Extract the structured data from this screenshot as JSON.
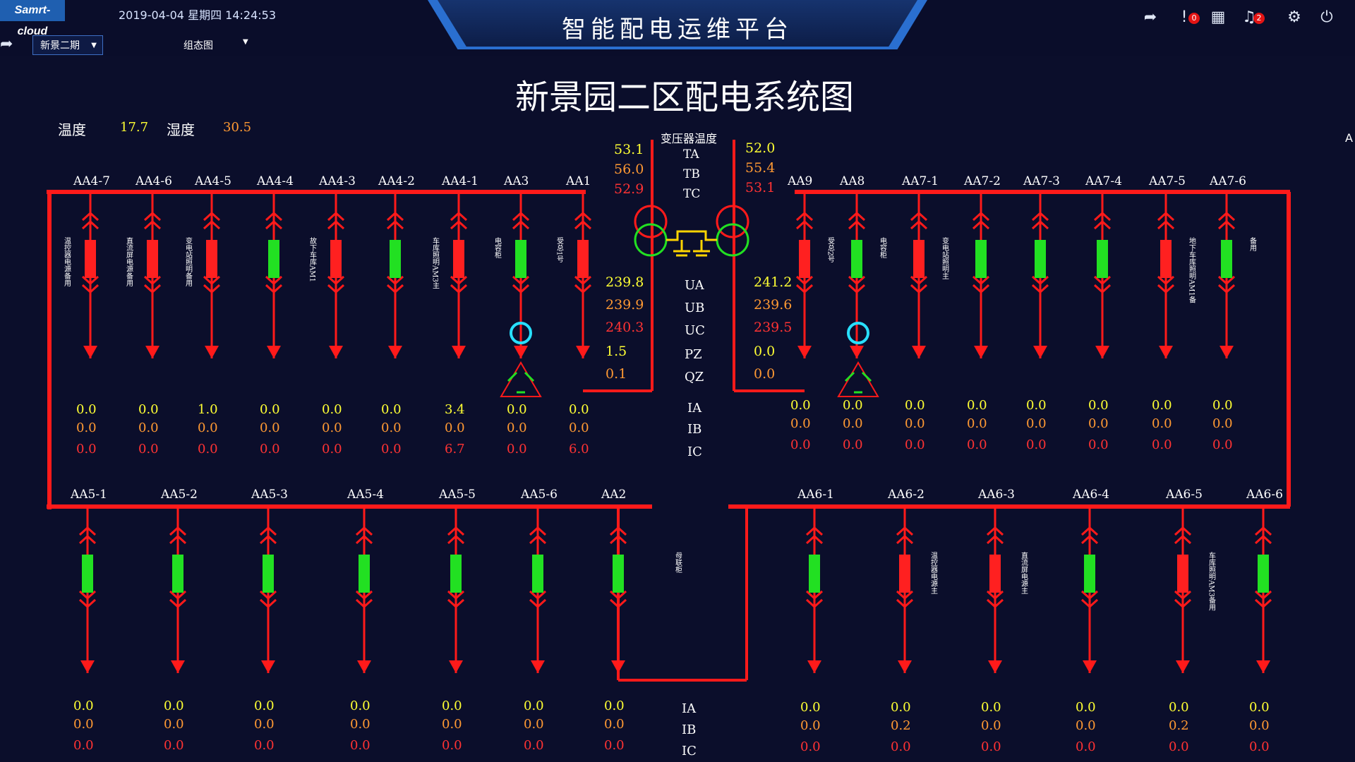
{
  "header": {
    "logo": "Samrt-cloud",
    "datetime": "2019-04-04 星期四 14:24:53",
    "title": "智能配电运维平台",
    "alarm_count": "0",
    "notice_count": "2",
    "site": "新景二期",
    "view": "组态图"
  },
  "diagram_title": "新景园二区配电系统图",
  "env": {
    "temp_label": "温度",
    "temp": "17.7",
    "humid_label": "湿度",
    "humid": "30.5"
  },
  "edge_label": "A",
  "transformer": {
    "title": "变压器温度",
    "labels": [
      "TA",
      "TB",
      "TC"
    ],
    "left": [
      "53.1",
      "56.0",
      "52.9"
    ],
    "right": [
      "52.0",
      "55.4",
      "53.1"
    ]
  },
  "voltage": {
    "labels": [
      "UA",
      "UB",
      "UC",
      "PZ",
      "QZ"
    ],
    "left": [
      "239.8",
      "239.9",
      "240.3",
      "1.5",
      "0.1"
    ],
    "right": [
      "241.2",
      "239.6",
      "239.5",
      "0.0",
      "0.0"
    ]
  },
  "current_labels": [
    "IA",
    "IB",
    "IC"
  ],
  "colors": {
    "bus": "#ff1a1a",
    "closed": "#ff2020",
    "open": "#22e022",
    "cap": "#28e0ff",
    "ia": "#ffff33",
    "ib": "#ff9933",
    "ic": "#ff3333"
  },
  "top_left": [
    {
      "name": "AA4-7",
      "state": "red",
      "desc": "温控器电源备用",
      "ia": "0.0",
      "ib": "0.0",
      "ic": "0.0"
    },
    {
      "name": "AA4-6",
      "state": "red",
      "desc": "直流屏电源备用",
      "ia": "0.0",
      "ib": "0.0",
      "ic": "0.0"
    },
    {
      "name": "AA4-5",
      "state": "red",
      "desc": "变电站照明备用",
      "ia": "1.0",
      "ib": "0.0",
      "ic": "0.0"
    },
    {
      "name": "AA4-4",
      "state": "green",
      "desc": "",
      "ia": "0.0",
      "ib": "0.0",
      "ic": "0.0"
    },
    {
      "name": "AA4-3",
      "state": "red",
      "desc": "故下车库AM1",
      "ia": "0.0",
      "ib": "0.0",
      "ic": "0.0"
    },
    {
      "name": "AA4-2",
      "state": "green",
      "desc": "",
      "ia": "0.0",
      "ib": "0.0",
      "ic": "0.0"
    },
    {
      "name": "AA4-1",
      "state": "red",
      "desc": "车库照明AM3主",
      "ia": "3.4",
      "ib": "0.0",
      "ic": "6.7"
    },
    {
      "name": "AA3",
      "state": "green",
      "desc": "电容柜",
      "ia": "0.0",
      "ib": "0.0",
      "ic": "0.0"
    },
    {
      "name": "AA1",
      "state": "red",
      "desc": "受总1号",
      "ia": "0.0",
      "ib": "0.0",
      "ic": "6.0"
    }
  ],
  "top_right": [
    {
      "name": "AA9",
      "state": "red",
      "desc": "受总2号",
      "ia": "0.0",
      "ib": "0.0",
      "ic": "0.0"
    },
    {
      "name": "AA8",
      "state": "green",
      "desc": "电容柜",
      "ia": "0.0",
      "ib": "0.0",
      "ic": "0.0"
    },
    {
      "name": "AA7-1",
      "state": "red",
      "desc": "变电站照明主",
      "ia": "0.0",
      "ib": "0.0",
      "ic": "0.0"
    },
    {
      "name": "AA7-2",
      "state": "green",
      "desc": "",
      "ia": "0.0",
      "ib": "0.0",
      "ic": "0.0"
    },
    {
      "name": "AA7-3",
      "state": "green",
      "desc": "",
      "ia": "0.0",
      "ib": "0.0",
      "ic": "0.0"
    },
    {
      "name": "AA7-4",
      "state": "green",
      "desc": "",
      "ia": "0.0",
      "ib": "0.0",
      "ic": "0.0"
    },
    {
      "name": "AA7-5",
      "state": "red",
      "desc": "地下车库照明AM1备",
      "ia": "0.0",
      "ib": "0.0",
      "ic": "0.0"
    },
    {
      "name": "AA7-6",
      "state": "green",
      "desc": "备用",
      "ia": "0.0",
      "ib": "0.0",
      "ic": "0.0"
    }
  ],
  "bottom_left": [
    {
      "name": "AA5-1",
      "state": "green",
      "desc": "",
      "ia": "0.0",
      "ib": "0.0",
      "ic": "0.0"
    },
    {
      "name": "AA5-2",
      "state": "green",
      "desc": "",
      "ia": "0.0",
      "ib": "0.0",
      "ic": "0.0"
    },
    {
      "name": "AA5-3",
      "state": "green",
      "desc": "",
      "ia": "0.0",
      "ib": "0.0",
      "ic": "0.0"
    },
    {
      "name": "AA5-4",
      "state": "green",
      "desc": "",
      "ia": "0.0",
      "ib": "0.0",
      "ic": "0.0"
    },
    {
      "name": "AA5-5",
      "state": "green",
      "desc": "",
      "ia": "0.0",
      "ib": "0.0",
      "ic": "0.0"
    },
    {
      "name": "AA5-6",
      "state": "green",
      "desc": "",
      "ia": "0.0",
      "ib": "0.0",
      "ic": "0.0"
    },
    {
      "name": "AA2",
      "state": "green",
      "desc": "母联柜",
      "ia": "0.0",
      "ib": "0.0",
      "ic": "0.0"
    }
  ],
  "bottom_right": [
    {
      "name": "AA6-1",
      "state": "green",
      "desc": "",
      "ia": "0.0",
      "ib": "0.0",
      "ic": "0.0"
    },
    {
      "name": "AA6-2",
      "state": "red",
      "desc": "温控器电源主",
      "ia": "0.0",
      "ib": "0.2",
      "ic": "0.0"
    },
    {
      "name": "AA6-3",
      "state": "red",
      "desc": "直流屏电源主",
      "ia": "0.0",
      "ib": "0.0",
      "ic": "0.0"
    },
    {
      "name": "AA6-4",
      "state": "green",
      "desc": "",
      "ia": "0.0",
      "ib": "0.0",
      "ic": "0.0"
    },
    {
      "name": "AA6-5",
      "state": "red",
      "desc": "车库照明AM3备用",
      "ia": "0.0",
      "ib": "0.2",
      "ic": "0.0"
    },
    {
      "name": "AA6-6",
      "state": "green",
      "desc": "",
      "ia": "0.0",
      "ib": "0.0",
      "ic": "0.0"
    }
  ]
}
